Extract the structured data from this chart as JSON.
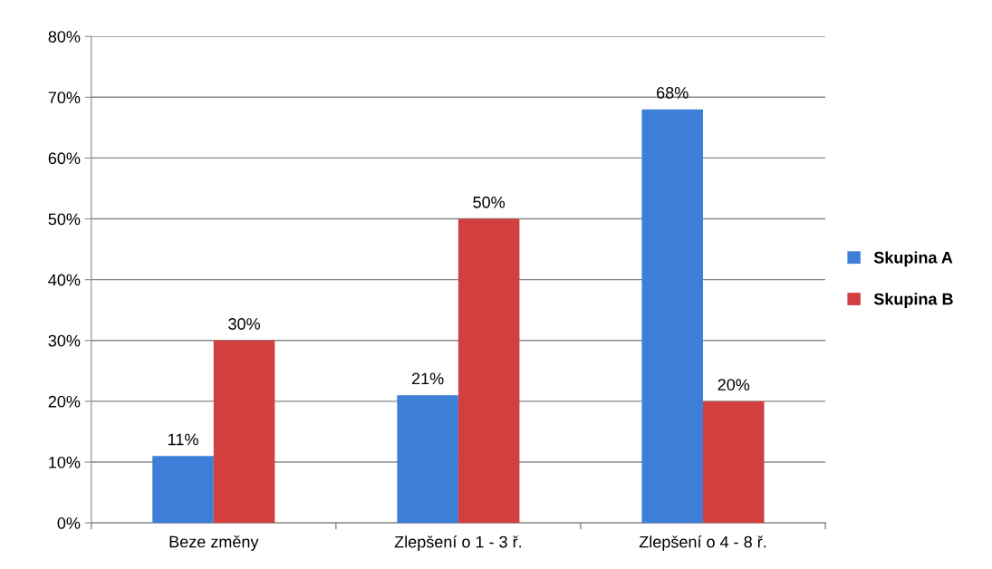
{
  "chart_data": {
    "type": "bar",
    "categories": [
      "Beze změny",
      "Zlepšení o 1 - 3 ř.",
      "Zlepšení o 4 - 8 ř."
    ],
    "series": [
      {
        "name": "Skupina A",
        "color": "#3d7fd6",
        "values": [
          11,
          21,
          68
        ],
        "value_labels": [
          "11%",
          "21%",
          "68%"
        ]
      },
      {
        "name": "Skupina B",
        "color": "#d23f3f",
        "values": [
          30,
          50,
          20
        ],
        "value_labels": [
          "30%",
          "50%",
          "20%"
        ]
      }
    ],
    "ylim": [
      0,
      80
    ],
    "yticks": [
      {
        "value": 0,
        "label": "0%"
      },
      {
        "value": 10,
        "label": "10%"
      },
      {
        "value": 20,
        "label": "20%"
      },
      {
        "value": 30,
        "label": "30%"
      },
      {
        "value": 40,
        "label": "40%"
      },
      {
        "value": 50,
        "label": "50%"
      },
      {
        "value": 60,
        "label": "60%"
      },
      {
        "value": 70,
        "label": "70%"
      },
      {
        "value": 80,
        "label": "80%"
      }
    ],
    "grid": "y",
    "legend": "right"
  }
}
